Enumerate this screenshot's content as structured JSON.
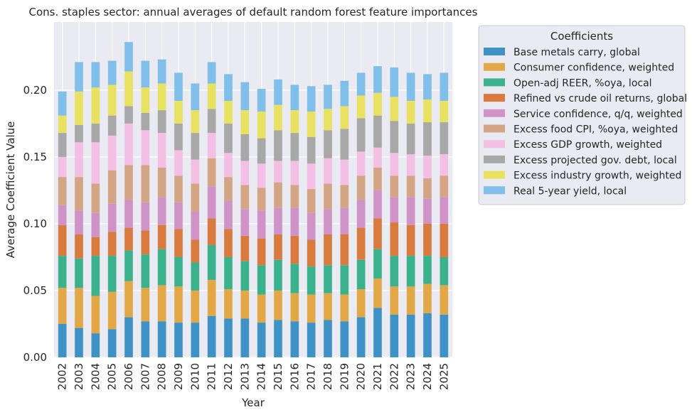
{
  "chart_data": {
    "type": "bar",
    "stacked": true,
    "title": "Cons. staples sector: annual averages of default random forest feature importances",
    "xlabel": "Year",
    "ylabel": "Average Coefficient Value",
    "ylim": [
      0,
      0.251
    ],
    "yticks": [
      0.0,
      0.05,
      0.1,
      0.15,
      0.2
    ],
    "ytick_labels": [
      "0.00",
      "0.05",
      "0.10",
      "0.15",
      "0.20"
    ],
    "grid": true,
    "legend_title": "Coefficients",
    "legend_position": "outside-right",
    "categories": [
      "2002",
      "2003",
      "2004",
      "2005",
      "2006",
      "2007",
      "2008",
      "2009",
      "2010",
      "2011",
      "2012",
      "2013",
      "2014",
      "2015",
      "2016",
      "2017",
      "2018",
      "2019",
      "2020",
      "2021",
      "2022",
      "2023",
      "2024",
      "2025"
    ],
    "series": [
      {
        "name": "Base metals carry, global",
        "color": "#3f92c6",
        "values": [
          0.025,
          0.022,
          0.018,
          0.021,
          0.03,
          0.027,
          0.027,
          0.026,
          0.026,
          0.031,
          0.029,
          0.029,
          0.026,
          0.028,
          0.027,
          0.026,
          0.028,
          0.027,
          0.03,
          0.037,
          0.032,
          0.032,
          0.033,
          0.032
        ]
      },
      {
        "name": "Consumer confidence, weighted",
        "color": "#e2a746",
        "values": [
          0.027,
          0.03,
          0.028,
          0.028,
          0.027,
          0.025,
          0.027,
          0.027,
          0.024,
          0.027,
          0.022,
          0.021,
          0.021,
          0.022,
          0.021,
          0.021,
          0.02,
          0.02,
          0.021,
          0.022,
          0.021,
          0.021,
          0.022,
          0.022
        ]
      },
      {
        "name": "Open-adj REER, %oya, local",
        "color": "#3bb18e",
        "values": [
          0.024,
          0.022,
          0.03,
          0.027,
          0.023,
          0.025,
          0.027,
          0.022,
          0.021,
          0.026,
          0.024,
          0.022,
          0.022,
          0.023,
          0.022,
          0.021,
          0.021,
          0.022,
          0.022,
          0.022,
          0.023,
          0.023,
          0.021,
          0.021
        ]
      },
      {
        "name": "Refined vs crude oil returns, global",
        "color": "#d97a3f",
        "values": [
          0.023,
          0.018,
          0.014,
          0.018,
          0.017,
          0.018,
          0.018,
          0.021,
          0.017,
          0.02,
          0.021,
          0.019,
          0.02,
          0.019,
          0.021,
          0.02,
          0.023,
          0.023,
          0.024,
          0.023,
          0.025,
          0.023,
          0.024,
          0.025
        ]
      },
      {
        "name": "Service confidence, q/q, weighted",
        "color": "#d093c8",
        "values": [
          0.015,
          0.018,
          0.018,
          0.021,
          0.021,
          0.021,
          0.021,
          0.02,
          0.021,
          0.024,
          0.021,
          0.02,
          0.021,
          0.02,
          0.021,
          0.02,
          0.019,
          0.02,
          0.021,
          0.021,
          0.019,
          0.021,
          0.019,
          0.02
        ]
      },
      {
        "name": "Excess food CPI, %oya, weighted",
        "color": "#d4a584",
        "values": [
          0.021,
          0.025,
          0.022,
          0.025,
          0.026,
          0.028,
          0.022,
          0.02,
          0.021,
          0.021,
          0.018,
          0.018,
          0.017,
          0.019,
          0.017,
          0.018,
          0.019,
          0.017,
          0.018,
          0.017,
          0.016,
          0.016,
          0.015,
          0.016
        ]
      },
      {
        "name": "Excess GDP growth, weighted",
        "color": "#f4bfe5",
        "values": [
          0.015,
          0.026,
          0.031,
          0.026,
          0.031,
          0.026,
          0.026,
          0.019,
          0.018,
          0.019,
          0.018,
          0.018,
          0.018,
          0.016,
          0.018,
          0.019,
          0.019,
          0.019,
          0.018,
          0.015,
          0.017,
          0.016,
          0.017,
          0.016
        ]
      },
      {
        "name": "Excess projected gov. debt, local",
        "color": "#a8a8a8",
        "values": [
          0.018,
          0.013,
          0.014,
          0.015,
          0.013,
          0.013,
          0.017,
          0.02,
          0.02,
          0.018,
          0.022,
          0.02,
          0.019,
          0.023,
          0.021,
          0.02,
          0.021,
          0.023,
          0.025,
          0.024,
          0.024,
          0.023,
          0.025,
          0.024
        ]
      },
      {
        "name": "Excess industry growth, weighted",
        "color": "#e8e161",
        "values": [
          0.013,
          0.025,
          0.027,
          0.023,
          0.026,
          0.019,
          0.02,
          0.017,
          0.017,
          0.019,
          0.017,
          0.018,
          0.02,
          0.019,
          0.017,
          0.019,
          0.016,
          0.017,
          0.017,
          0.017,
          0.018,
          0.017,
          0.017,
          0.016
        ]
      },
      {
        "name": "Real 5-year yield, local",
        "color": "#7fbfe9",
        "values": [
          0.018,
          0.022,
          0.019,
          0.018,
          0.022,
          0.02,
          0.018,
          0.021,
          0.02,
          0.016,
          0.02,
          0.021,
          0.017,
          0.019,
          0.019,
          0.019,
          0.018,
          0.019,
          0.017,
          0.02,
          0.022,
          0.021,
          0.019,
          0.021
        ]
      }
    ]
  }
}
